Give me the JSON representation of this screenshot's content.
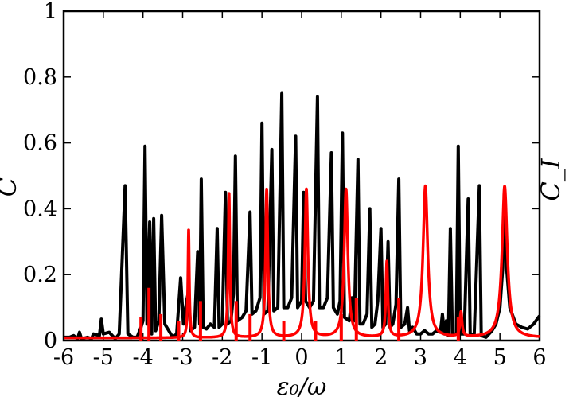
{
  "chart_data": {
    "type": "line",
    "xlabel": "ε₀/ω",
    "ylabel_left": "C̄",
    "ylabel_right": "C_I",
    "xlim": [
      -6,
      6
    ],
    "ylim": [
      0,
      1
    ],
    "x_ticks": [
      -6,
      -5,
      -4,
      -3,
      -2,
      -1,
      0,
      1,
      2,
      3,
      4,
      5,
      6
    ],
    "x_tick_labels": [
      "-6",
      "-5",
      "-4",
      "-3",
      "-2",
      "-1",
      "0",
      "1",
      "2",
      "3",
      "4",
      "5",
      "6"
    ],
    "y_ticks": [
      0,
      0.2,
      0.4,
      0.6,
      0.8,
      1
    ],
    "y_tick_labels": [
      "0",
      "0.2",
      "0.4",
      "0.6",
      "0.8",
      "1"
    ],
    "grid": false,
    "series": [
      {
        "color": "#000000",
        "points": [
          [
            -6.0,
            0.01
          ],
          [
            -5.85,
            0.01
          ],
          [
            -5.75,
            0.015
          ],
          [
            -5.65,
            0.005
          ],
          [
            -5.6,
            0.025
          ],
          [
            -5.55,
            0.005
          ],
          [
            -5.4,
            0.01
          ],
          [
            -5.3,
            0.005
          ],
          [
            -5.25,
            0.02
          ],
          [
            -5.1,
            0.015
          ],
          [
            -5.05,
            0.065
          ],
          [
            -5.0,
            0.02
          ],
          [
            -4.85,
            0.025
          ],
          [
            -4.7,
            0.005
          ],
          [
            -4.6,
            0.02
          ],
          [
            -4.45,
            0.47
          ],
          [
            -4.38,
            0.02
          ],
          [
            -4.25,
            0.01
          ],
          [
            -4.15,
            0.01
          ],
          [
            -4.05,
            0.04
          ],
          [
            -4.0,
            0.06
          ],
          [
            -3.95,
            0.59
          ],
          [
            -3.9,
            0.05
          ],
          [
            -3.83,
            0.36
          ],
          [
            -3.78,
            0.02
          ],
          [
            -3.73,
            0.37
          ],
          [
            -3.68,
            0.03
          ],
          [
            -3.6,
            0.06
          ],
          [
            -3.53,
            0.38
          ],
          [
            -3.45,
            0.05
          ],
          [
            -3.35,
            0.03
          ],
          [
            -3.25,
            0.01
          ],
          [
            -3.15,
            0.02
          ],
          [
            -3.05,
            0.19
          ],
          [
            -2.98,
            0.05
          ],
          [
            -2.9,
            0.12
          ],
          [
            -2.85,
            0.15
          ],
          [
            -2.8,
            0.03
          ],
          [
            -2.7,
            0.04
          ],
          [
            -2.62,
            0.27
          ],
          [
            -2.57,
            0.05
          ],
          [
            -2.53,
            0.49
          ],
          [
            -2.48,
            0.04
          ],
          [
            -2.4,
            0.035
          ],
          [
            -2.3,
            0.05
          ],
          [
            -2.2,
            0.04
          ],
          [
            -2.13,
            0.34
          ],
          [
            -2.08,
            0.04
          ],
          [
            -2.0,
            0.05
          ],
          [
            -1.92,
            0.45
          ],
          [
            -1.87,
            0.05
          ],
          [
            -1.78,
            0.06
          ],
          [
            -1.72,
            0.14
          ],
          [
            -1.67,
            0.56
          ],
          [
            -1.62,
            0.06
          ],
          [
            -1.5,
            0.07
          ],
          [
            -1.4,
            0.09
          ],
          [
            -1.3,
            0.39
          ],
          [
            -1.25,
            0.08
          ],
          [
            -1.15,
            0.09
          ],
          [
            -1.05,
            0.13
          ],
          [
            -1.0,
            0.66
          ],
          [
            -0.95,
            0.08
          ],
          [
            -0.85,
            0.09
          ],
          [
            -0.75,
            0.58
          ],
          [
            -0.7,
            0.09
          ],
          [
            -0.6,
            0.1
          ],
          [
            -0.5,
            0.75
          ],
          [
            -0.45,
            0.1
          ],
          [
            -0.35,
            0.1
          ],
          [
            -0.25,
            0.13
          ],
          [
            -0.15,
            0.62
          ],
          [
            -0.1,
            0.1
          ],
          [
            0.0,
            0.12
          ],
          [
            0.05,
            0.45
          ],
          [
            0.1,
            0.12
          ],
          [
            0.2,
            0.1
          ],
          [
            0.3,
            0.12
          ],
          [
            0.4,
            0.74
          ],
          [
            0.45,
            0.1
          ],
          [
            0.55,
            0.1
          ],
          [
            0.65,
            0.13
          ],
          [
            0.75,
            0.57
          ],
          [
            0.8,
            0.1
          ],
          [
            0.9,
            0.08
          ],
          [
            0.97,
            0.12
          ],
          [
            1.03,
            0.63
          ],
          [
            1.08,
            0.07
          ],
          [
            1.2,
            0.06
          ],
          [
            1.27,
            0.13
          ],
          [
            1.33,
            0.06
          ],
          [
            1.42,
            0.55
          ],
          [
            1.47,
            0.05
          ],
          [
            1.55,
            0.05
          ],
          [
            1.65,
            0.08
          ],
          [
            1.72,
            0.4
          ],
          [
            1.77,
            0.04
          ],
          [
            1.85,
            0.05
          ],
          [
            1.92,
            0.12
          ],
          [
            2.0,
            0.34
          ],
          [
            2.05,
            0.04
          ],
          [
            2.12,
            0.05
          ],
          [
            2.18,
            0.3
          ],
          [
            2.23,
            0.04
          ],
          [
            2.3,
            0.05
          ],
          [
            2.38,
            0.11
          ],
          [
            2.45,
            0.49
          ],
          [
            2.5,
            0.04
          ],
          [
            2.6,
            0.05
          ],
          [
            2.67,
            0.1
          ],
          [
            2.72,
            0.03
          ],
          [
            2.8,
            0.04
          ],
          [
            2.9,
            0.02
          ],
          [
            3.0,
            0.02
          ],
          [
            3.1,
            0.03
          ],
          [
            3.2,
            0.02
          ],
          [
            3.3,
            0.02
          ],
          [
            3.4,
            0.03
          ],
          [
            3.5,
            0.025
          ],
          [
            3.55,
            0.08
          ],
          [
            3.6,
            0.02
          ],
          [
            3.65,
            0.06
          ],
          [
            3.7,
            0.015
          ],
          [
            3.75,
            0.34
          ],
          [
            3.8,
            0.02
          ],
          [
            3.9,
            0.02
          ],
          [
            3.95,
            0.59
          ],
          [
            4.0,
            0.02
          ],
          [
            4.1,
            0.02
          ],
          [
            4.2,
            0.43
          ],
          [
            4.25,
            0.02
          ],
          [
            4.35,
            0.015
          ],
          [
            4.48,
            0.47
          ],
          [
            4.53,
            0.015
          ],
          [
            4.65,
            0.01
          ],
          [
            4.8,
            0.03
          ],
          [
            4.9,
            0.05
          ],
          [
            5.0,
            0.1
          ],
          [
            5.07,
            0.22
          ],
          [
            5.12,
            0.44
          ],
          [
            5.17,
            0.22
          ],
          [
            5.25,
            0.1
          ],
          [
            5.4,
            0.05
          ],
          [
            5.55,
            0.04
          ],
          [
            5.7,
            0.035
          ],
          [
            5.85,
            0.05
          ],
          [
            6.0,
            0.075
          ]
        ]
      },
      {
        "color": "#ff0000",
        "lorentzians": [
          {
            "x0": -2.85,
            "height": 0.33,
            "gamma": 0.02
          },
          {
            "x0": -1.83,
            "height": 0.44,
            "gamma": 0.025
          },
          {
            "x0": -0.88,
            "height": 0.45,
            "gamma": 0.035
          },
          {
            "x0": 0.12,
            "height": 0.45,
            "gamma": 0.045
          },
          {
            "x0": 1.12,
            "height": 0.45,
            "gamma": 0.055
          },
          {
            "x0": 2.15,
            "height": 0.23,
            "gamma": 0.03
          },
          {
            "x0": 3.12,
            "height": 0.46,
            "gamma": 0.07
          },
          {
            "x0": 4.02,
            "height": 0.075,
            "gamma": 0.03
          },
          {
            "x0": 5.12,
            "height": 0.46,
            "gamma": 0.08
          }
        ],
        "bars": [
          [
            -4.05,
            0.07
          ],
          [
            -3.85,
            0.16
          ],
          [
            -3.55,
            0.08
          ],
          [
            -3.1,
            0.06
          ],
          [
            -2.55,
            0.12
          ],
          [
            -1.65,
            0.12
          ],
          [
            -1.3,
            0.08
          ],
          [
            -0.45,
            0.06
          ],
          [
            0.35,
            0.06
          ],
          [
            1.0,
            0.08
          ],
          [
            1.38,
            0.13
          ],
          [
            2.45,
            0.13
          ],
          [
            3.95,
            0.07
          ]
        ]
      }
    ]
  }
}
